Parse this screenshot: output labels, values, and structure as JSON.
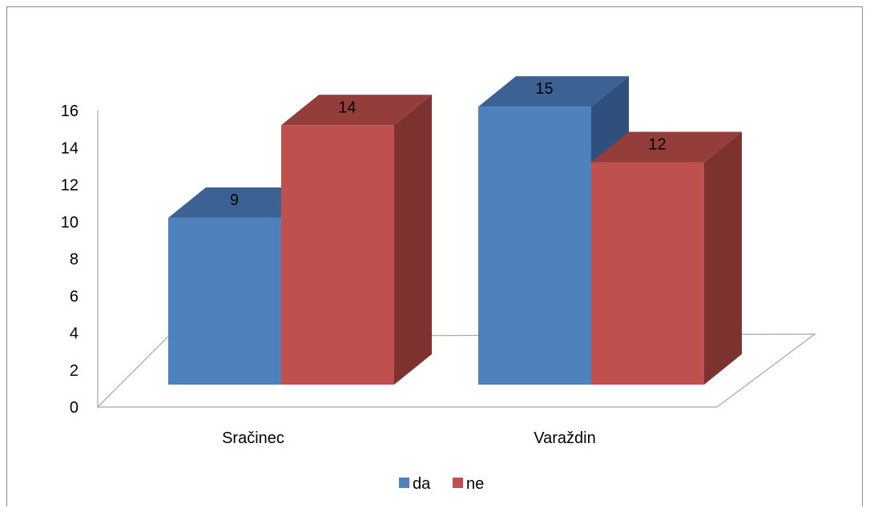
{
  "chart_data": {
    "type": "bar",
    "three_d": true,
    "categories": [
      "Sračinec",
      "Varaždin"
    ],
    "series": [
      {
        "name": "da",
        "values": [
          9,
          15
        ],
        "color": "#4F81BD",
        "top_color": "#3C6293",
        "side_color": "#2F507D"
      },
      {
        "name": "ne",
        "values": [
          14,
          12
        ],
        "color": "#C0504D",
        "top_color": "#943D3B",
        "side_color": "#7D3230"
      }
    ],
    "y_ticks": [
      "0",
      "2",
      "4",
      "6",
      "8",
      "10",
      "12",
      "14",
      "16"
    ],
    "ylim": [
      0,
      16
    ],
    "data_labels": true,
    "legend_position": "bottom",
    "grid": false
  }
}
